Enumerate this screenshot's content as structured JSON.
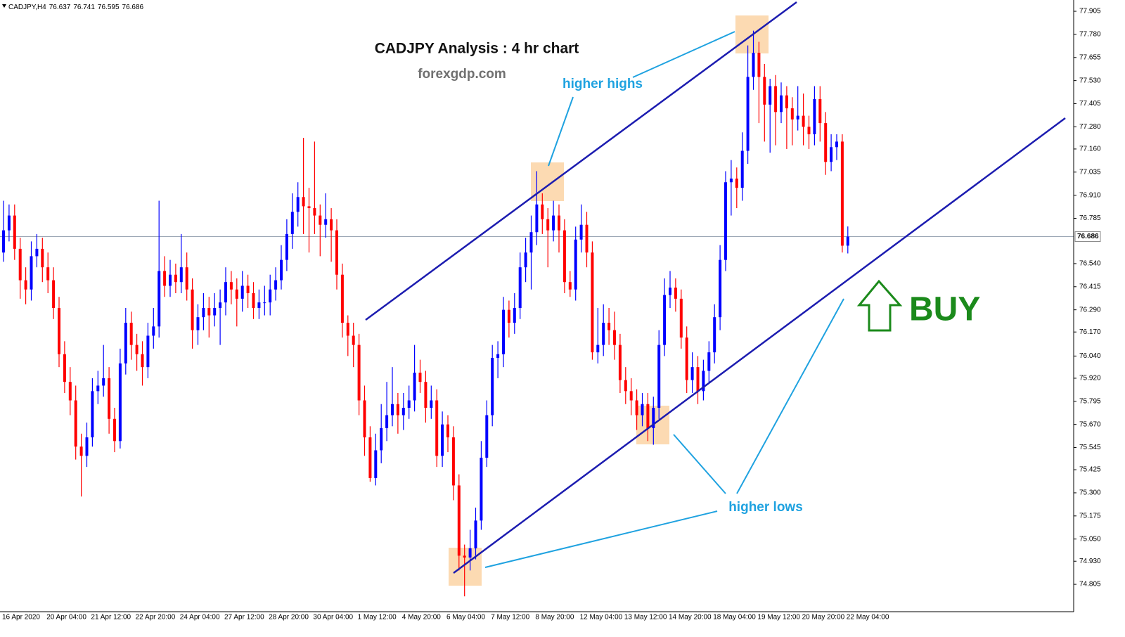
{
  "chart_data": {
    "type": "candlestick",
    "symbol": "CADJPY,H4",
    "title": "CADJPY Analysis : 4 hr chart",
    "subtitle": "forexgdp.com",
    "annotations": [
      "higher highs",
      "higher lows",
      "BUY"
    ],
    "up_color": "#0000ff",
    "down_color": "#ff0000",
    "ylim": [
      74.657,
      77.966
    ],
    "yticks": [
      74.805,
      {
        "value": 74.93,
        "label": "74.930"
      },
      {
        "value": 75.05,
        "label": "75.050"
      },
      75.175,
      {
        "value": 75.3,
        "label": "75.300"
      },
      75.425,
      75.545,
      {
        "value": 75.67,
        "label": "75.670"
      },
      75.795,
      {
        "value": 75.92,
        "label": "75.920"
      },
      {
        "value": 76.04,
        "label": "76.040"
      },
      {
        "value": 76.17,
        "label": "76.170"
      },
      {
        "value": 76.29,
        "label": "76.290"
      },
      76.415,
      {
        "value": 76.54,
        "label": "76.540"
      },
      76.785,
      {
        "value": 76.91,
        "label": "76.910"
      },
      77.035,
      {
        "value": 77.16,
        "label": "77.160"
      },
      {
        "value": 77.28,
        "label": "77.280"
      },
      77.405,
      {
        "value": 77.53,
        "label": "77.530"
      },
      77.655,
      {
        "value": 77.78,
        "label": "77.780"
      },
      77.905
    ],
    "categories": [
      "16 Apr 2020",
      null,
      null,
      null,
      null,
      null,
      null,
      null,
      "20 Apr 04:00",
      null,
      null,
      null,
      null,
      null,
      null,
      null,
      "21 Apr 12:00",
      null,
      null,
      null,
      null,
      null,
      null,
      null,
      "22 Apr 20:00",
      null,
      null,
      null,
      null,
      null,
      null,
      null,
      "24 Apr 04:00",
      null,
      null,
      null,
      null,
      null,
      null,
      null,
      "27 Apr 12:00",
      null,
      null,
      null,
      null,
      null,
      null,
      null,
      "28 Apr 20:00",
      null,
      null,
      null,
      null,
      null,
      null,
      null,
      "30 Apr 04:00",
      null,
      null,
      null,
      null,
      null,
      null,
      null,
      "1 May 12:00",
      null,
      null,
      null,
      null,
      null,
      null,
      null,
      "4 May 20:00",
      null,
      null,
      null,
      null,
      null,
      null,
      null,
      "6 May 04:00",
      null,
      null,
      null,
      null,
      null,
      null,
      null,
      "7 May 12:00",
      null,
      null,
      null,
      null,
      null,
      null,
      null,
      "8 May 20:00",
      null,
      null,
      null,
      null,
      null,
      null,
      null,
      "12 May 04:00",
      null,
      null,
      null,
      null,
      null,
      null,
      null,
      "13 May 12:00",
      null,
      null,
      null,
      null,
      null,
      null,
      null,
      "14 May 20:00",
      null,
      null,
      null,
      null,
      null,
      null,
      null,
      "18 May 04:00",
      null,
      null,
      null,
      null,
      null,
      null,
      null,
      "19 May 12:00",
      null,
      null,
      null,
      null,
      null,
      null,
      null,
      "20 May 20:00",
      null,
      null,
      null,
      null,
      null,
      null,
      null,
      "22 May 04:00"
    ],
    "candles": [
      [
        76.6,
        76.88,
        76.55,
        76.72
      ],
      [
        76.72,
        76.86,
        76.66,
        76.8
      ],
      [
        76.8,
        76.86,
        76.56,
        76.62
      ],
      [
        76.62,
        76.68,
        76.35,
        76.45
      ],
      [
        76.45,
        76.52,
        76.32,
        76.4
      ],
      [
        76.4,
        76.66,
        76.34,
        76.58
      ],
      [
        76.58,
        76.7,
        76.52,
        76.62
      ],
      [
        76.62,
        76.68,
        76.44,
        76.52
      ],
      [
        76.52,
        76.6,
        76.38,
        76.45
      ],
      [
        76.45,
        76.52,
        76.24,
        76.3
      ],
      [
        76.3,
        76.36,
        75.98,
        76.05
      ],
      [
        76.05,
        76.12,
        75.84,
        75.9
      ],
      [
        75.9,
        75.98,
        75.72,
        75.8
      ],
      [
        75.8,
        75.88,
        75.48,
        75.55
      ],
      [
        75.55,
        75.62,
        75.28,
        75.5
      ],
      [
        75.5,
        75.68,
        75.44,
        75.6
      ],
      [
        75.6,
        75.92,
        75.55,
        75.85
      ],
      [
        75.85,
        75.96,
        75.78,
        75.88
      ],
      [
        75.88,
        76.1,
        75.82,
        75.92
      ],
      [
        75.92,
        75.98,
        75.62,
        75.7
      ],
      [
        75.7,
        75.76,
        75.52,
        75.58
      ],
      [
        75.58,
        76.08,
        75.54,
        76.0
      ],
      [
        76.0,
        76.3,
        75.94,
        76.22
      ],
      [
        76.22,
        76.28,
        76.02,
        76.1
      ],
      [
        76.1,
        76.16,
        75.96,
        76.05
      ],
      [
        76.05,
        76.12,
        75.88,
        75.98
      ],
      [
        75.98,
        76.22,
        75.92,
        76.15
      ],
      [
        76.15,
        76.3,
        76.08,
        76.2
      ],
      [
        76.2,
        76.88,
        76.14,
        76.5
      ],
      [
        76.5,
        76.58,
        76.36,
        76.42
      ],
      [
        76.42,
        76.56,
        76.36,
        76.48
      ],
      [
        76.48,
        76.54,
        76.38,
        76.44
      ],
      [
        76.44,
        76.7,
        76.38,
        76.52
      ],
      [
        76.52,
        76.6,
        76.34,
        76.4
      ],
      [
        76.4,
        76.46,
        76.08,
        76.18
      ],
      [
        76.18,
        76.32,
        76.1,
        76.25
      ],
      [
        76.25,
        76.38,
        76.18,
        76.3
      ],
      [
        76.3,
        76.36,
        76.14,
        76.26
      ],
      [
        76.26,
        76.38,
        76.2,
        76.3
      ],
      [
        76.3,
        76.4,
        76.1,
        76.33
      ],
      [
        76.33,
        76.52,
        76.26,
        76.44
      ],
      [
        76.44,
        76.5,
        76.32,
        76.4
      ],
      [
        76.4,
        76.46,
        76.2,
        76.35
      ],
      [
        76.35,
        76.5,
        76.28,
        76.42
      ],
      [
        76.42,
        76.48,
        76.3,
        76.38
      ],
      [
        76.38,
        76.44,
        76.24,
        76.3
      ],
      [
        76.3,
        76.4,
        76.24,
        76.33
      ],
      [
        76.33,
        76.42,
        76.26,
        76.33
      ],
      [
        76.33,
        76.48,
        76.26,
        76.4
      ],
      [
        76.4,
        76.52,
        76.34,
        76.45
      ],
      [
        76.45,
        76.64,
        76.4,
        76.56
      ],
      [
        76.56,
        76.78,
        76.5,
        76.7
      ],
      [
        76.7,
        76.92,
        76.62,
        76.82
      ],
      [
        76.82,
        76.98,
        76.74,
        76.9
      ],
      [
        76.9,
        77.22,
        76.7,
        76.85
      ],
      [
        76.85,
        76.95,
        76.6,
        76.84
      ],
      [
        76.84,
        77.2,
        76.7,
        76.8
      ],
      [
        76.8,
        76.86,
        76.58,
        76.75
      ],
      [
        76.75,
        76.92,
        76.68,
        76.78
      ],
      [
        76.78,
        76.84,
        76.55,
        76.72
      ],
      [
        76.72,
        76.78,
        76.4,
        76.48
      ],
      [
        76.48,
        76.54,
        76.14,
        76.22
      ],
      [
        76.22,
        76.26,
        76.04,
        76.15
      ],
      [
        76.15,
        76.22,
        75.98,
        76.1
      ],
      [
        76.1,
        76.16,
        75.72,
        75.8
      ],
      [
        75.8,
        75.88,
        75.5,
        75.6
      ],
      [
        75.6,
        75.66,
        75.36,
        75.38
      ],
      [
        75.38,
        75.62,
        75.34,
        75.53
      ],
      [
        75.53,
        75.78,
        75.46,
        75.65
      ],
      [
        75.65,
        75.9,
        75.58,
        75.72
      ],
      [
        75.72,
        75.98,
        75.66,
        75.78
      ],
      [
        75.78,
        75.84,
        75.62,
        75.72
      ],
      [
        75.72,
        75.84,
        75.64,
        75.76
      ],
      [
        75.76,
        75.88,
        75.7,
        75.8
      ],
      [
        75.8,
        76.1,
        75.74,
        75.95
      ],
      [
        75.95,
        76.02,
        75.84,
        75.9
      ],
      [
        75.9,
        75.96,
        75.68,
        75.76
      ],
      [
        75.76,
        75.88,
        75.7,
        75.8
      ],
      [
        75.8,
        75.86,
        75.44,
        75.5
      ],
      [
        75.5,
        75.74,
        75.44,
        75.67
      ],
      [
        75.67,
        75.72,
        75.52,
        75.6
      ],
      [
        75.6,
        75.66,
        75.26,
        75.34
      ],
      [
        75.34,
        75.4,
        74.88,
        74.96
      ],
      [
        74.96,
        75.02,
        74.74,
        74.95
      ],
      [
        74.95,
        75.1,
        74.88,
        75.0
      ],
      [
        75.0,
        75.22,
        74.94,
        75.15
      ],
      [
        75.15,
        75.58,
        75.1,
        75.49
      ],
      [
        75.49,
        75.8,
        75.44,
        75.72
      ],
      [
        75.72,
        76.1,
        75.66,
        76.03
      ],
      [
        76.03,
        76.12,
        75.92,
        76.05
      ],
      [
        76.05,
        76.36,
        75.98,
        76.29
      ],
      [
        76.29,
        76.34,
        76.14,
        76.22
      ],
      [
        76.22,
        76.38,
        76.16,
        76.3
      ],
      [
        76.3,
        76.6,
        76.24,
        76.52
      ],
      [
        76.52,
        76.68,
        76.44,
        76.6
      ],
      [
        76.6,
        76.8,
        76.4,
        76.71
      ],
      [
        76.71,
        77.04,
        76.64,
        76.86
      ],
      [
        76.86,
        76.92,
        76.7,
        76.78
      ],
      [
        76.78,
        76.84,
        76.52,
        76.72
      ],
      [
        76.72,
        76.88,
        76.66,
        76.8
      ],
      [
        76.8,
        76.86,
        76.6,
        76.72
      ],
      [
        76.72,
        76.78,
        76.38,
        76.44
      ],
      [
        76.44,
        76.5,
        76.36,
        76.4
      ],
      [
        76.4,
        76.74,
        76.34,
        76.67
      ],
      [
        76.67,
        76.86,
        76.6,
        76.75
      ],
      [
        76.75,
        76.82,
        76.52,
        76.6
      ],
      [
        76.6,
        76.66,
        76.02,
        76.06
      ],
      [
        76.06,
        76.3,
        76.0,
        76.1
      ],
      [
        76.1,
        76.32,
        76.04,
        76.22
      ],
      [
        76.22,
        76.3,
        76.1,
        76.18
      ],
      [
        76.18,
        76.28,
        76.02,
        76.1
      ],
      [
        76.1,
        76.16,
        75.84,
        75.91
      ],
      [
        75.91,
        75.98,
        75.78,
        75.85
      ],
      [
        75.85,
        75.92,
        75.72,
        75.8
      ],
      [
        75.8,
        75.86,
        75.64,
        75.72
      ],
      [
        75.72,
        75.84,
        75.66,
        75.78
      ],
      [
        75.78,
        75.84,
        75.58,
        75.65
      ],
      [
        75.65,
        75.82,
        75.56,
        75.76
      ],
      [
        75.76,
        76.18,
        75.7,
        76.1
      ],
      [
        76.1,
        76.46,
        76.04,
        76.37
      ],
      [
        76.37,
        76.5,
        76.3,
        76.41
      ],
      [
        76.41,
        76.46,
        76.28,
        76.35
      ],
      [
        76.35,
        76.4,
        76.08,
        76.14
      ],
      [
        76.14,
        76.2,
        75.84,
        75.91
      ],
      [
        75.91,
        76.06,
        75.84,
        75.98
      ],
      [
        75.98,
        76.04,
        75.78,
        75.85
      ],
      [
        75.85,
        76.02,
        75.8,
        75.96
      ],
      [
        75.96,
        76.12,
        75.9,
        76.06
      ],
      [
        76.06,
        76.32,
        76.0,
        76.25
      ],
      [
        76.25,
        76.64,
        76.18,
        76.56
      ],
      [
        76.56,
        77.04,
        76.5,
        76.98
      ],
      [
        76.98,
        77.1,
        76.8,
        77.0
      ],
      [
        77.0,
        77.06,
        76.84,
        76.95
      ],
      [
        76.95,
        77.25,
        76.88,
        77.15
      ],
      [
        77.15,
        77.72,
        77.08,
        77.55
      ],
      [
        77.55,
        77.8,
        77.48,
        77.68
      ],
      [
        77.68,
        77.74,
        77.3,
        77.55
      ],
      [
        77.55,
        77.62,
        77.2,
        77.4
      ],
      [
        77.4,
        77.54,
        77.14,
        77.5
      ],
      [
        77.5,
        77.56,
        77.18,
        77.36
      ],
      [
        77.36,
        77.52,
        77.3,
        77.45
      ],
      [
        77.45,
        77.5,
        77.16,
        77.38
      ],
      [
        77.38,
        77.44,
        77.18,
        77.32
      ],
      [
        77.32,
        77.5,
        77.26,
        77.34
      ],
      [
        77.34,
        77.46,
        77.18,
        77.28
      ],
      [
        77.28,
        77.34,
        77.16,
        77.24
      ],
      [
        77.24,
        77.5,
        77.18,
        77.43
      ],
      [
        77.43,
        77.5,
        77.2,
        77.3
      ],
      [
        77.3,
        77.36,
        77.02,
        77.09
      ],
      [
        77.09,
        77.24,
        77.04,
        77.17
      ],
      [
        77.17,
        77.24,
        77.1,
        77.2
      ],
      [
        77.2,
        77.24,
        76.6,
        76.637
      ],
      [
        76.637,
        76.741,
        76.595,
        76.686
      ]
    ]
  }
}
